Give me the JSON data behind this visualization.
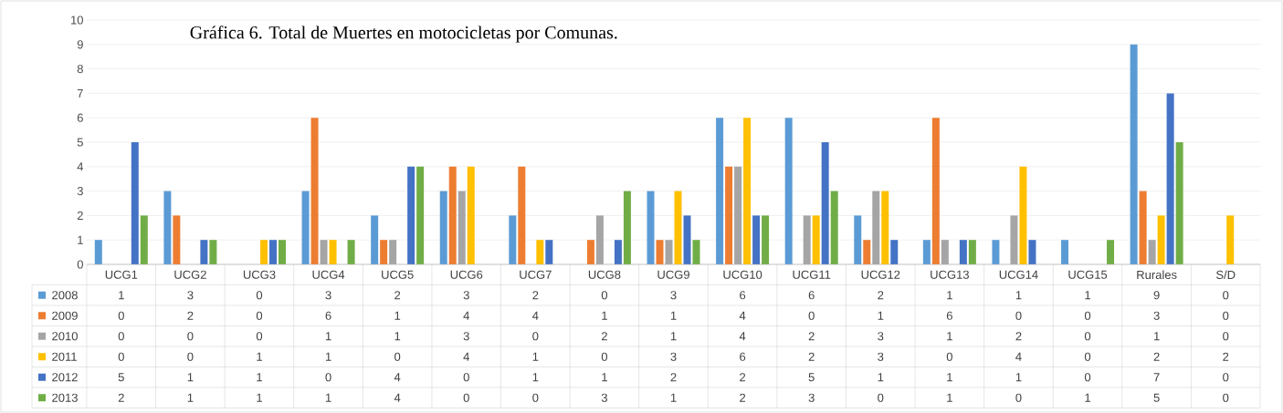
{
  "chart_data": {
    "type": "bar",
    "title": "Gráfica 6. Total de Muertes en motocicletas por Comunas.",
    "categories": [
      "UCG1",
      "UCG2",
      "UCG3",
      "UCG4",
      "UCG5",
      "UCG6",
      "UCG7",
      "UCG8",
      "UCG9",
      "UCG10",
      "UCG11",
      "UCG12",
      "UCG13",
      "UCG14",
      "UCG15",
      "Rurales",
      "S/D"
    ],
    "series": [
      {
        "name": "2008",
        "color": "#5b9bd5",
        "values": [
          1,
          3,
          0,
          3,
          2,
          3,
          2,
          0,
          3,
          6,
          6,
          2,
          1,
          1,
          1,
          9,
          0
        ]
      },
      {
        "name": "2009",
        "color": "#ed7d31",
        "values": [
          0,
          2,
          0,
          6,
          1,
          4,
          4,
          1,
          1,
          4,
          0,
          1,
          6,
          0,
          0,
          3,
          0
        ]
      },
      {
        "name": "2010",
        "color": "#a5a5a5",
        "values": [
          0,
          0,
          0,
          1,
          1,
          3,
          0,
          2,
          1,
          4,
          2,
          3,
          1,
          2,
          0,
          1,
          0
        ]
      },
      {
        "name": "2011",
        "color": "#ffc000",
        "values": [
          0,
          0,
          1,
          1,
          0,
          4,
          1,
          0,
          3,
          6,
          2,
          3,
          0,
          4,
          0,
          2,
          2
        ]
      },
      {
        "name": "2012",
        "color": "#4472c4",
        "values": [
          5,
          1,
          1,
          0,
          4,
          0,
          1,
          1,
          2,
          2,
          5,
          1,
          1,
          1,
          0,
          7,
          0
        ]
      },
      {
        "name": "2013",
        "color": "#70ad47",
        "values": [
          2,
          1,
          1,
          1,
          4,
          0,
          0,
          3,
          1,
          2,
          3,
          0,
          1,
          0,
          1,
          5,
          0
        ]
      }
    ],
    "ylim": [
      0,
      10
    ],
    "yticks": [
      0,
      1,
      2,
      3,
      4,
      5,
      6,
      7,
      8,
      9,
      10
    ],
    "grid": "y",
    "legend": "bottom",
    "data_labels": true
  }
}
